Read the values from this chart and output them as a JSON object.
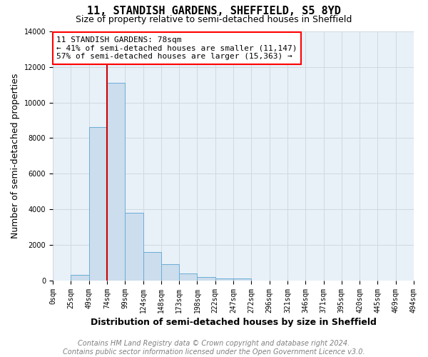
{
  "title": "11, STANDISH GARDENS, SHEFFIELD, S5 8YD",
  "subtitle": "Size of property relative to semi-detached houses in Sheffield",
  "xlabel": "Distribution of semi-detached houses by size in Sheffield",
  "ylabel": "Number of semi-detached properties",
  "footer_line1": "Contains HM Land Registry data © Crown copyright and database right 2024.",
  "footer_line2": "Contains public sector information licensed under the Open Government Licence v3.0.",
  "annotation_line1": "11 STANDISH GARDENS: 78sqm",
  "annotation_line2": "← 41% of semi-detached houses are smaller (11,147)",
  "annotation_line3": "57% of semi-detached houses are larger (15,363) →",
  "bin_labels": [
    "0sqm",
    "25sqm",
    "49sqm",
    "74sqm",
    "99sqm",
    "124sqm",
    "148sqm",
    "173sqm",
    "198sqm",
    "222sqm",
    "247sqm",
    "272sqm",
    "296sqm",
    "321sqm",
    "346sqm",
    "371sqm",
    "395sqm",
    "420sqm",
    "445sqm",
    "469sqm",
    "494sqm"
  ],
  "counts": [
    0,
    300,
    8600,
    11100,
    3800,
    1600,
    900,
    400,
    200,
    100,
    100,
    0,
    0,
    0,
    0,
    0,
    0,
    0,
    0,
    0
  ],
  "bar_facecolor": "#ccdded",
  "bar_edgecolor": "#6aaed6",
  "vline_color": "#cc0000",
  "vline_bin": 3,
  "ylim": [
    0,
    14000
  ],
  "yticks": [
    0,
    2000,
    4000,
    6000,
    8000,
    10000,
    12000,
    14000
  ],
  "grid_color": "#d0d8e0",
  "background_color": "#ffffff",
  "plot_bg_color": "#e8f0f8",
  "annotation_box_color": "red",
  "title_fontsize": 11,
  "subtitle_fontsize": 9,
  "axis_label_fontsize": 9,
  "tick_fontsize": 7,
  "annotation_fontsize": 8,
  "footer_fontsize": 7
}
